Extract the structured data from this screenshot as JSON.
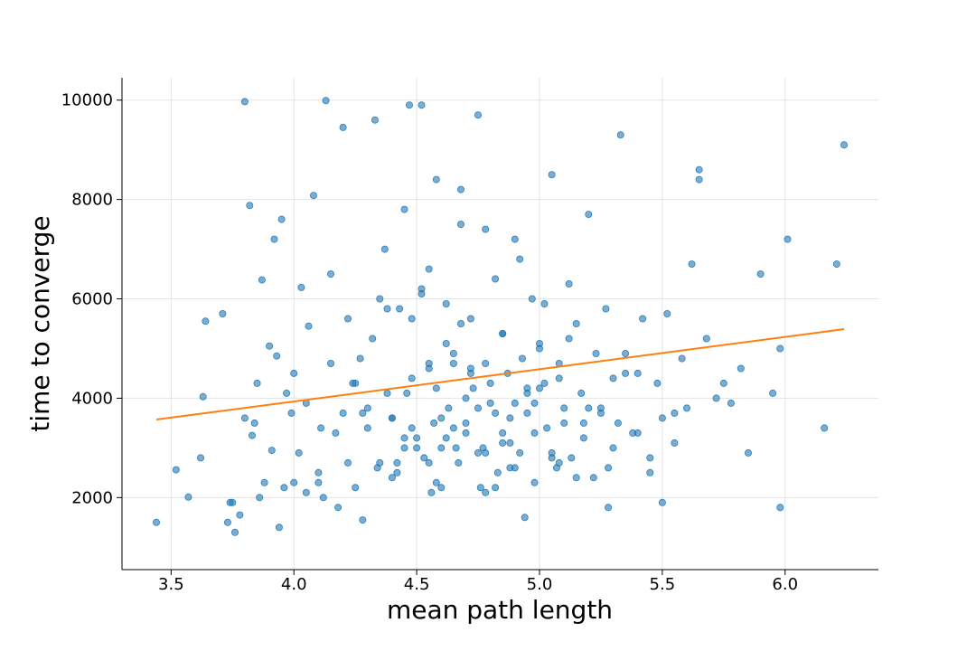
{
  "chart_data": {
    "type": "scatter",
    "title": "",
    "xlabel": "mean path length",
    "ylabel": "time to converge",
    "xlim": [
      3.3,
      6.38
    ],
    "ylim": [
      550,
      10450
    ],
    "xticks": [
      3.5,
      4.0,
      4.5,
      5.0,
      5.5,
      6.0
    ],
    "xtick_labels": [
      "3.5",
      "4.0",
      "4.5",
      "5.0",
      "5.5",
      "6.0"
    ],
    "yticks": [
      2000,
      4000,
      6000,
      8000,
      10000
    ],
    "ytick_labels": [
      "2000",
      "4000",
      "6000",
      "8000",
      "10000"
    ],
    "grid": true,
    "point_color": "#1f77b4",
    "fit_color": "#ff7f0e",
    "trendline": {
      "x": [
        3.44,
        6.24
      ],
      "y": [
        3570,
        5390
      ]
    },
    "series": [
      {
        "x": [
          3.44,
          3.52,
          3.57,
          3.62,
          3.63,
          3.64,
          3.71,
          3.73,
          3.74,
          3.76,
          3.78,
          3.8,
          3.82,
          3.83,
          3.84,
          3.86,
          3.87,
          3.88,
          3.9,
          3.91,
          3.93,
          3.94,
          3.96,
          3.97,
          3.99,
          4.0,
          4.02,
          4.03,
          4.05,
          4.06,
          4.08,
          4.1,
          4.11,
          4.13,
          4.15,
          4.17,
          4.18,
          4.2,
          4.22,
          4.24,
          4.25,
          4.27,
          4.28,
          4.3,
          4.32,
          4.33,
          4.35,
          4.37,
          4.38,
          4.4,
          4.42,
          4.43,
          4.45,
          4.47,
          4.48,
          4.5,
          4.52,
          4.53,
          4.55,
          4.57,
          4.58,
          4.6,
          4.62,
          4.63,
          4.65,
          4.67,
          4.68,
          4.7,
          4.72,
          4.73,
          4.75,
          4.77,
          4.78,
          4.8,
          4.82,
          4.83,
          4.85,
          4.87,
          4.88,
          4.9,
          4.92,
          4.93,
          4.95,
          4.97,
          4.98,
          5.0,
          5.02,
          5.03,
          5.05,
          5.07,
          5.08,
          5.1,
          5.12,
          5.13,
          5.15,
          5.17,
          5.18,
          5.2,
          5.22,
          5.23,
          5.25,
          5.27,
          5.28,
          5.3,
          5.32,
          5.33,
          5.35,
          5.38,
          5.4,
          5.42,
          5.45,
          5.48,
          5.5,
          5.52,
          5.55,
          5.58,
          5.6,
          5.62,
          5.65,
          5.68,
          5.72,
          5.75,
          5.78,
          5.82,
          5.85,
          5.9,
          5.95,
          5.98,
          6.01,
          6.16,
          6.21,
          6.24,
          4.45,
          4.48,
          4.52,
          4.55,
          4.58,
          4.62,
          4.65,
          4.68,
          4.72,
          4.75,
          4.78,
          4.82,
          4.85,
          4.88,
          4.92,
          4.95,
          4.98,
          5.02,
          5.05,
          5.08,
          4.4,
          4.6,
          4.7,
          4.8,
          4.9,
          5.0,
          5.1,
          4.3,
          4.5,
          4.65,
          4.75,
          4.85,
          4.95,
          5.05,
          4.2,
          4.35,
          4.42,
          4.58,
          4.68,
          4.88,
          4.15,
          4.25,
          4.38,
          4.55,
          4.62,
          4.72,
          4.78,
          4.98,
          5.15,
          5.25,
          5.35,
          3.8,
          3.92,
          4.05,
          4.45,
          4.55,
          4.85,
          5.2,
          3.95,
          4.12,
          4.28,
          4.48,
          4.52,
          4.7,
          4.9,
          5.12,
          5.3,
          5.45,
          5.55,
          5.65,
          5.98,
          3.85,
          4.1,
          4.4,
          4.6,
          4.78,
          5.0,
          5.4,
          3.75,
          4.0,
          4.22,
          4.46,
          4.66,
          4.82,
          5.08,
          5.28,
          5.5,
          4.34,
          4.56,
          4.76,
          4.94,
          5.18
        ],
        "y": [
          1500,
          2560,
          2010,
          2800,
          4030,
          5550,
          5700,
          1500,
          1900,
          1300,
          1650,
          9970,
          7880,
          3250,
          3500,
          2000,
          6380,
          2300,
          5050,
          2950,
          4850,
          1400,
          2200,
          4100,
          3700,
          4500,
          2900,
          6230,
          3900,
          5450,
          8080,
          2500,
          3400,
          9990,
          4700,
          3300,
          1800,
          9450,
          5600,
          4300,
          2200,
          4800,
          1550,
          3800,
          5200,
          9600,
          2700,
          7000,
          4100,
          3600,
          2500,
          5800,
          3200,
          9900,
          4400,
          3000,
          6200,
          2800,
          4600,
          3500,
          8400,
          2200,
          5100,
          3800,
          4900,
          2700,
          7500,
          3300,
          5600,
          4200,
          9700,
          3000,
          4700,
          3900,
          6400,
          2500,
          5300,
          4500,
          3600,
          7200,
          2900,
          4800,
          3700,
          6000,
          2300,
          5100,
          4300,
          3400,
          8500,
          2600,
          4700,
          3800,
          6300,
          2800,
          5500,
          4100,
          3200,
          7700,
          2400,
          4900,
          3700,
          5800,
          2600,
          4400,
          3500,
          9300,
          4900,
          3300,
          4500,
          5600,
          2800,
          4300,
          3600,
          5700,
          3100,
          4800,
          3800,
          6700,
          8400,
          5200,
          4000,
          4300,
          3900,
          4600,
          2900,
          6500,
          4100,
          5000,
          7200,
          3400,
          6700,
          9100,
          7800,
          5600,
          9900,
          6600,
          2300,
          5900,
          3400,
          8200,
          4600,
          2900,
          7400,
          3700,
          5300,
          2600,
          6800,
          4100,
          3300,
          5900,
          2800,
          4400,
          3600,
          3000,
          4000,
          4300,
          3900,
          5000,
          3500,
          3400,
          3200,
          4700,
          3800,
          3100,
          4200,
          2900,
          3700,
          6000,
          2700,
          4200,
          5500,
          3100,
          6500,
          4300,
          5800,
          2700,
          3200,
          4500,
          2900,
          3900,
          2400,
          3800,
          4500,
          3600,
          7200,
          2100,
          3000,
          4700,
          3300,
          3800,
          7600,
          2000,
          3700,
          3400,
          6100,
          3500,
          2600,
          5200,
          3000,
          2500,
          3700,
          8600,
          1800,
          4300,
          2300,
          2400,
          3600,
          2100,
          4200,
          3300,
          1900,
          2300,
          2700,
          4100,
          3000,
          2200,
          2700,
          1800,
          1900,
          2600,
          2100,
          2200,
          1600,
          3500
        ]
      }
    ]
  }
}
